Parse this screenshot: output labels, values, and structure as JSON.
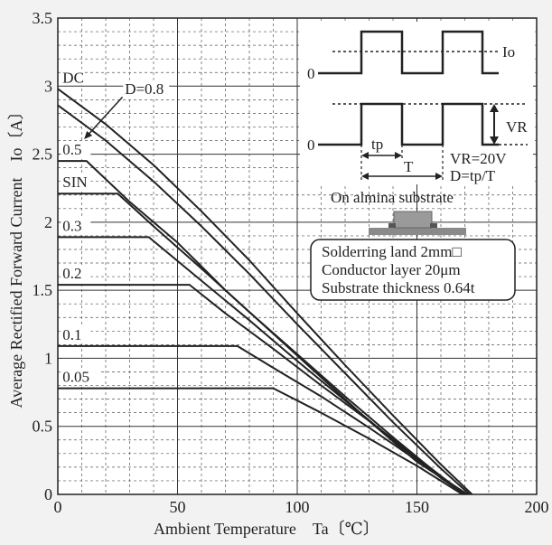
{
  "chart_data": {
    "type": "line",
    "xlabel": "Ambient Temperature　Ta〔℃〕",
    "ylabel": "Average Rectified Forward Current　Io〔A〕",
    "xlim": [
      0,
      200
    ],
    "ylim": [
      0,
      3.5
    ],
    "xticks": [
      0,
      50,
      100,
      150,
      200
    ],
    "yticks": [
      0,
      0.5,
      1,
      1.5,
      2,
      2.5,
      3,
      3.5
    ],
    "grid": true,
    "series": [
      {
        "name": "DC",
        "color": "#222222",
        "points": [
          [
            0,
            2.98
          ],
          [
            20,
            2.72
          ],
          [
            40,
            2.42
          ],
          [
            60,
            2.08
          ],
          [
            80,
            1.72
          ],
          [
            100,
            1.33
          ],
          [
            120,
            0.95
          ],
          [
            140,
            0.58
          ],
          [
            160,
            0.22
          ],
          [
            173,
            0.0
          ]
        ]
      },
      {
        "name": "D=0.8",
        "color": "#222222",
        "points": [
          [
            0,
            2.86
          ],
          [
            20,
            2.6
          ],
          [
            40,
            2.3
          ],
          [
            60,
            1.97
          ],
          [
            80,
            1.62
          ],
          [
            100,
            1.25
          ],
          [
            120,
            0.89
          ],
          [
            140,
            0.53
          ],
          [
            160,
            0.19
          ],
          [
            172,
            0.0
          ]
        ]
      },
      {
        "name": "0.5",
        "color": "#222222",
        "points": [
          [
            0,
            2.45
          ],
          [
            12,
            2.45
          ],
          [
            30,
            2.15
          ],
          [
            50,
            1.85
          ],
          [
            70,
            1.5
          ],
          [
            90,
            1.18
          ],
          [
            110,
            0.86
          ],
          [
            130,
            0.54
          ],
          [
            150,
            0.24
          ],
          [
            171,
            0.0
          ]
        ]
      },
      {
        "name": "SIN",
        "color": "#222222",
        "points": [
          [
            0,
            2.21
          ],
          [
            25,
            2.21
          ],
          [
            40,
            1.97
          ],
          [
            60,
            1.66
          ],
          [
            80,
            1.34
          ],
          [
            100,
            1.03
          ],
          [
            120,
            0.72
          ],
          [
            140,
            0.42
          ],
          [
            160,
            0.13
          ],
          [
            171,
            0.0
          ]
        ]
      },
      {
        "name": "0.3",
        "color": "#222222",
        "points": [
          [
            0,
            1.89
          ],
          [
            38,
            1.89
          ],
          [
            60,
            1.57
          ],
          [
            80,
            1.28
          ],
          [
            100,
            0.98
          ],
          [
            120,
            0.69
          ],
          [
            140,
            0.4
          ],
          [
            160,
            0.12
          ],
          [
            170,
            0.0
          ]
        ]
      },
      {
        "name": "0.2",
        "color": "#222222",
        "points": [
          [
            0,
            1.54
          ],
          [
            55,
            1.54
          ],
          [
            70,
            1.33
          ],
          [
            90,
            1.07
          ],
          [
            110,
            0.8
          ],
          [
            130,
            0.54
          ],
          [
            150,
            0.27
          ],
          [
            170,
            0.0
          ]
        ]
      },
      {
        "name": "0.1",
        "color": "#222222",
        "points": [
          [
            0,
            1.09
          ],
          [
            75,
            1.09
          ],
          [
            90,
            0.93
          ],
          [
            110,
            0.72
          ],
          [
            130,
            0.49
          ],
          [
            150,
            0.25
          ],
          [
            170,
            0.0
          ]
        ]
      },
      {
        "name": "0.05",
        "color": "#222222",
        "points": [
          [
            0,
            0.78
          ],
          [
            90,
            0.78
          ],
          [
            110,
            0.6
          ],
          [
            130,
            0.41
          ],
          [
            150,
            0.21
          ],
          [
            169,
            0.0
          ]
        ]
      }
    ],
    "inset": {
      "io_label": "Io",
      "vr_label": "VR",
      "zero_label_top": "0",
      "zero_label_bottom": "0",
      "tp_label": "tp",
      "t_label": "T",
      "vr_value": "VR=20V",
      "d_formula": "D=tp/T",
      "substrate_title": "On almina substrate",
      "notes": [
        "Solderring land 2mm□",
        "Conductor layer 20μm",
        "Substrate thickness 0.64t"
      ]
    }
  }
}
